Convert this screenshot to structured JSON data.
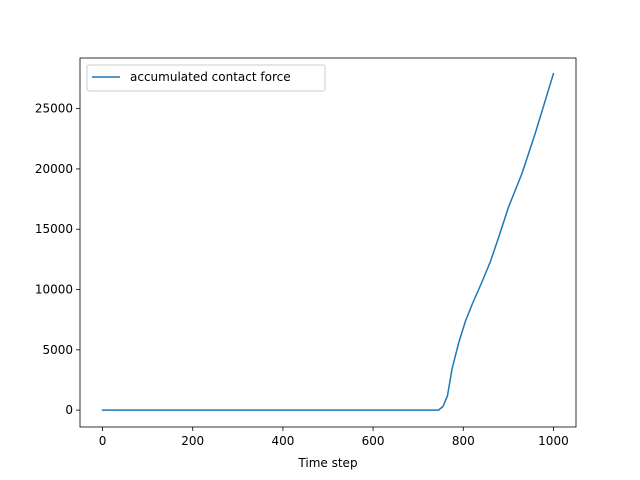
{
  "chart_data": {
    "type": "line",
    "title": "",
    "xlabel": "Time step",
    "ylabel": "",
    "xlim": [
      -50,
      1050
    ],
    "ylim": [
      -1400,
      29200
    ],
    "xticks": [
      0,
      200,
      400,
      600,
      800,
      1000
    ],
    "xtick_labels": [
      "0",
      "200",
      "400",
      "600",
      "800",
      "1000"
    ],
    "yticks": [
      0,
      5000,
      10000,
      15000,
      20000,
      25000
    ],
    "ytick_labels": [
      "0",
      "5000",
      "10000",
      "15000",
      "20000",
      "25000"
    ],
    "grid": false,
    "legend": {
      "placement": "top-left",
      "entries": [
        "accumulated contact force"
      ]
    },
    "series": [
      {
        "name": "accumulated contact force",
        "color": "#1f77b4",
        "x": [
          0,
          100,
          200,
          300,
          400,
          500,
          600,
          700,
          745,
          755,
          765,
          775,
          790,
          805,
          820,
          840,
          860,
          880,
          900,
          930,
          960,
          1000
        ],
        "y": [
          0,
          0,
          0,
          0,
          0,
          0,
          0,
          0,
          0,
          300,
          1200,
          3400,
          5600,
          7400,
          8800,
          10500,
          12300,
          14500,
          16800,
          19600,
          23000,
          27900
        ]
      }
    ]
  }
}
